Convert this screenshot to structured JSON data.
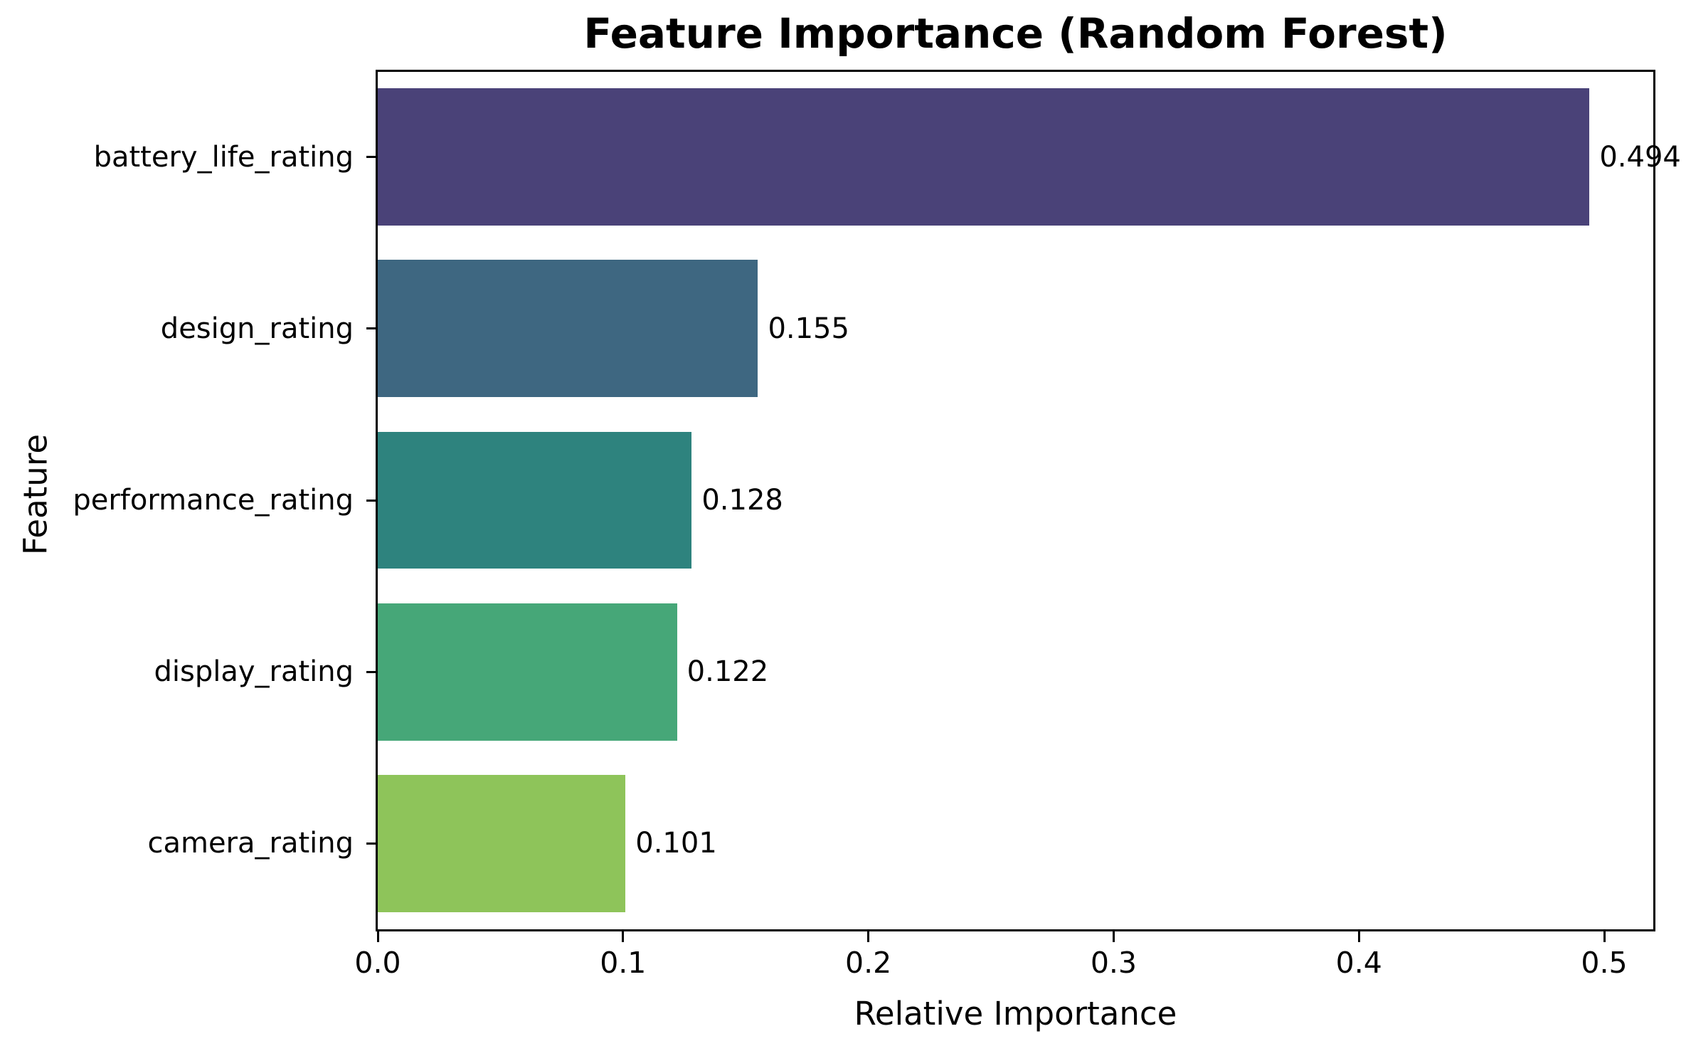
{
  "chart_data": {
    "type": "bar",
    "orientation": "horizontal",
    "title": "Feature Importance (Random Forest)",
    "xlabel": "Relative Importance",
    "ylabel": "Feature",
    "categories": [
      "battery_life_rating",
      "design_rating",
      "performance_rating",
      "display_rating",
      "camera_rating"
    ],
    "values": [
      0.494,
      0.155,
      0.128,
      0.122,
      0.101
    ],
    "value_labels": [
      "0.494",
      "0.155",
      "0.128",
      "0.122",
      "0.101"
    ],
    "bar_colors": [
      "#4a4278",
      "#3e6781",
      "#2e837e",
      "#46a778",
      "#8ec45a"
    ],
    "xticks": {
      "values": [
        0.0,
        0.1,
        0.2,
        0.3,
        0.4,
        0.5
      ],
      "labels": [
        "0.0",
        "0.1",
        "0.2",
        "0.3",
        "0.4",
        "0.5"
      ]
    },
    "xlim": [
      0,
      0.52
    ],
    "bar_relative_height": 0.8,
    "grid": false,
    "legend": "none",
    "background_color": "#ffffff",
    "axis_color": "#000000",
    "text_color": "#000000"
  }
}
